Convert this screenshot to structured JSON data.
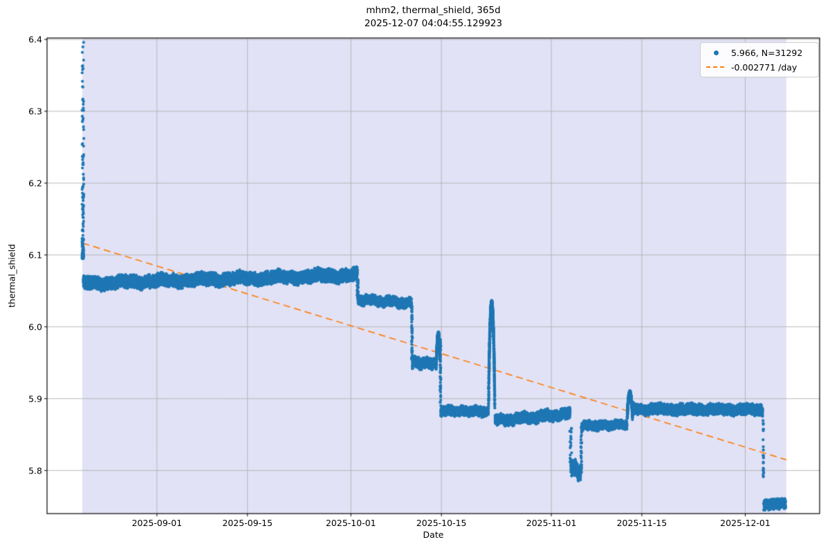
{
  "figure": {
    "title_line1": "mhm2, thermal_shield, 365d",
    "title_line2": "2025-12-07 04:04:55.129923",
    "xlabel": "Date",
    "ylabel": "thermal_shield"
  },
  "legend": {
    "position": "upper right",
    "entries": [
      {
        "label": "5.966, N=31292",
        "marker": "dot",
        "color": "#1f77b4"
      },
      {
        "label": "-0.002771 /day",
        "marker": "dashed-line",
        "color": "#ff7f0e"
      }
    ]
  },
  "colors": {
    "scatter": "#1f77b4",
    "trend": "#ff7f0e",
    "shade": "#e2e2f6",
    "grid": "#b0b0b0",
    "spine": "#000000",
    "background": "#ffffff"
  },
  "chart_data": {
    "type": "scatter",
    "title": "mhm2, thermal_shield, 365d\n2025-12-07 04:04:55.129923",
    "xlabel": "Date",
    "ylabel": "thermal_shield",
    "grid": true,
    "legend_position": "upper right",
    "x_epoch": "2025-08-15",
    "xlim_days": [
      0,
      119.5
    ],
    "ylim": [
      5.74,
      6.402
    ],
    "x_ticks": [
      {
        "label": "2025-09-01",
        "day": 17
      },
      {
        "label": "2025-09-15",
        "day": 31
      },
      {
        "label": "2025-10-01",
        "day": 47
      },
      {
        "label": "2025-10-15",
        "day": 61
      },
      {
        "label": "2025-11-01",
        "day": 78
      },
      {
        "label": "2025-11-15",
        "day": 92
      },
      {
        "label": "2025-12-01",
        "day": 108
      }
    ],
    "y_ticks": [
      {
        "label": "6.4",
        "value": 6.4
      },
      {
        "label": "6.3",
        "value": 6.3
      },
      {
        "label": "6.2",
        "value": 6.2
      },
      {
        "label": "6.1",
        "value": 6.1
      },
      {
        "label": "6.0",
        "value": 6.0
      },
      {
        "label": "5.9",
        "value": 5.9
      },
      {
        "label": "5.8",
        "value": 5.8
      }
    ],
    "shade_span_days": [
      5.45,
      114.35
    ],
    "series_stats": {
      "mean": 5.966,
      "n_points": 31292,
      "window": "365d",
      "sensor": "thermal_shield",
      "device": "mhm2"
    },
    "trend": {
      "label": "-0.002771 /day",
      "slope_per_day": -0.002771,
      "start_day": 5.5,
      "end_day": 114.35,
      "value_at_start": 6.1165,
      "value_at_end": 5.8149
    },
    "scatter_segments": [
      {
        "type": "column",
        "desc": "startup decay spike 2025-08-20",
        "day": 5.55,
        "v_top": 6.4,
        "v_bottom": 6.095,
        "n": 120,
        "x_jitter_days": 0.28,
        "bias_bottom": true
      },
      {
        "type": "band",
        "desc": "plateau Aug 21 - Oct 02",
        "d0": 5.6,
        "d1": 48.0,
        "v0": 6.0605,
        "v1": 6.072,
        "hw": 0.01,
        "wiggle": 0.003,
        "period": 6.0
      },
      {
        "type": "column",
        "desc": "step down Oct 02",
        "day": 48.05,
        "v_top": 6.066,
        "v_bottom": 6.038,
        "n": 30,
        "x_jitter_days": 0.18
      },
      {
        "type": "band",
        "desc": "plateau Oct 02 - Oct 10",
        "d0": 48.1,
        "d1": 56.4,
        "v0": 6.038,
        "v1": 6.033,
        "hw": 0.0075,
        "wiggle": 0.0028,
        "period": 3.2
      },
      {
        "type": "column",
        "desc": "step down Oct 10",
        "day": 56.45,
        "v_top": 6.03,
        "v_bottom": 5.953,
        "n": 45,
        "x_jitter_days": 0.14
      },
      {
        "type": "band",
        "desc": "plateau Oct 10 - Oct 14",
        "d0": 56.5,
        "d1": 60.25,
        "v0": 5.95,
        "v1": 5.949,
        "hw": 0.0085,
        "wiggle": 0.0022,
        "period": 1.8
      },
      {
        "type": "spike",
        "desc": "small spike Oct 14",
        "d0": 60.25,
        "d1": 60.8,
        "v_base": 5.952,
        "v_peak": 5.99
      },
      {
        "type": "column",
        "desc": "step down Oct 15",
        "day": 60.85,
        "v_top": 5.983,
        "v_bottom": 5.89,
        "n": 45,
        "x_jitter_days": 0.12
      },
      {
        "type": "band",
        "desc": "plateau Oct 15 - Oct 22",
        "d0": 60.9,
        "d1": 68.25,
        "v0": 5.8835,
        "v1": 5.882,
        "hw": 0.0075,
        "wiggle": 0.002,
        "period": 2.1
      },
      {
        "type": "spike",
        "desc": "large spike Oct 22",
        "d0": 68.3,
        "d1": 69.25,
        "v_base": 5.884,
        "v_peak": 6.034
      },
      {
        "type": "band",
        "desc": "plateau Oct 23 - Nov 04",
        "d0": 69.3,
        "d1": 80.9,
        "v0": 5.869,
        "v1": 5.879,
        "hw": 0.0085,
        "wiggle": 0.0026,
        "period": 3.5
      },
      {
        "type": "column",
        "desc": "drop into dip Nov 04",
        "day": 81.0,
        "v_top": 5.866,
        "v_bottom": 5.805,
        "n": 22,
        "x_jitter_days": 0.3
      },
      {
        "type": "band",
        "desc": "dip Nov 04 - Nov 06",
        "d0": 81.0,
        "d1": 82.6,
        "v0": 5.806,
        "v1": 5.796,
        "hw": 0.012,
        "wiggle": 0.0045,
        "period": 0.9
      },
      {
        "type": "column",
        "desc": "recovery Nov 06",
        "day": 82.65,
        "v_top": 5.862,
        "v_bottom": 5.79,
        "n": 25,
        "x_jitter_days": 0.15
      },
      {
        "type": "band",
        "desc": "plateau Nov 06 - Nov 13",
        "d0": 82.7,
        "d1": 89.7,
        "v0": 5.862,
        "v1": 5.864,
        "hw": 0.007,
        "wiggle": 0.002,
        "period": 2.4
      },
      {
        "type": "spike",
        "desc": "bump Nov 13",
        "d0": 89.75,
        "d1": 90.55,
        "v_base": 5.872,
        "v_peak": 5.908
      },
      {
        "type": "band",
        "desc": "plateau Nov 13 - Dec 04",
        "d0": 90.6,
        "d1": 110.7,
        "v0": 5.8855,
        "v1": 5.8845,
        "hw": 0.0085,
        "wiggle": 0.002,
        "period": 4.5
      },
      {
        "type": "column",
        "desc": "drop Dec 04",
        "day": 110.8,
        "v_top": 5.878,
        "v_bottom": 5.79,
        "n": 24,
        "x_jitter_days": 0.12
      },
      {
        "type": "band",
        "desc": "final plateau Dec 04 - Dec 07",
        "d0": 110.85,
        "d1": 114.25,
        "v0": 5.7525,
        "v1": 5.7545,
        "hw": 0.0078,
        "wiggle": 0.0018,
        "period": 0.8
      }
    ]
  },
  "layout_note": "points_per_day_rendered"
}
